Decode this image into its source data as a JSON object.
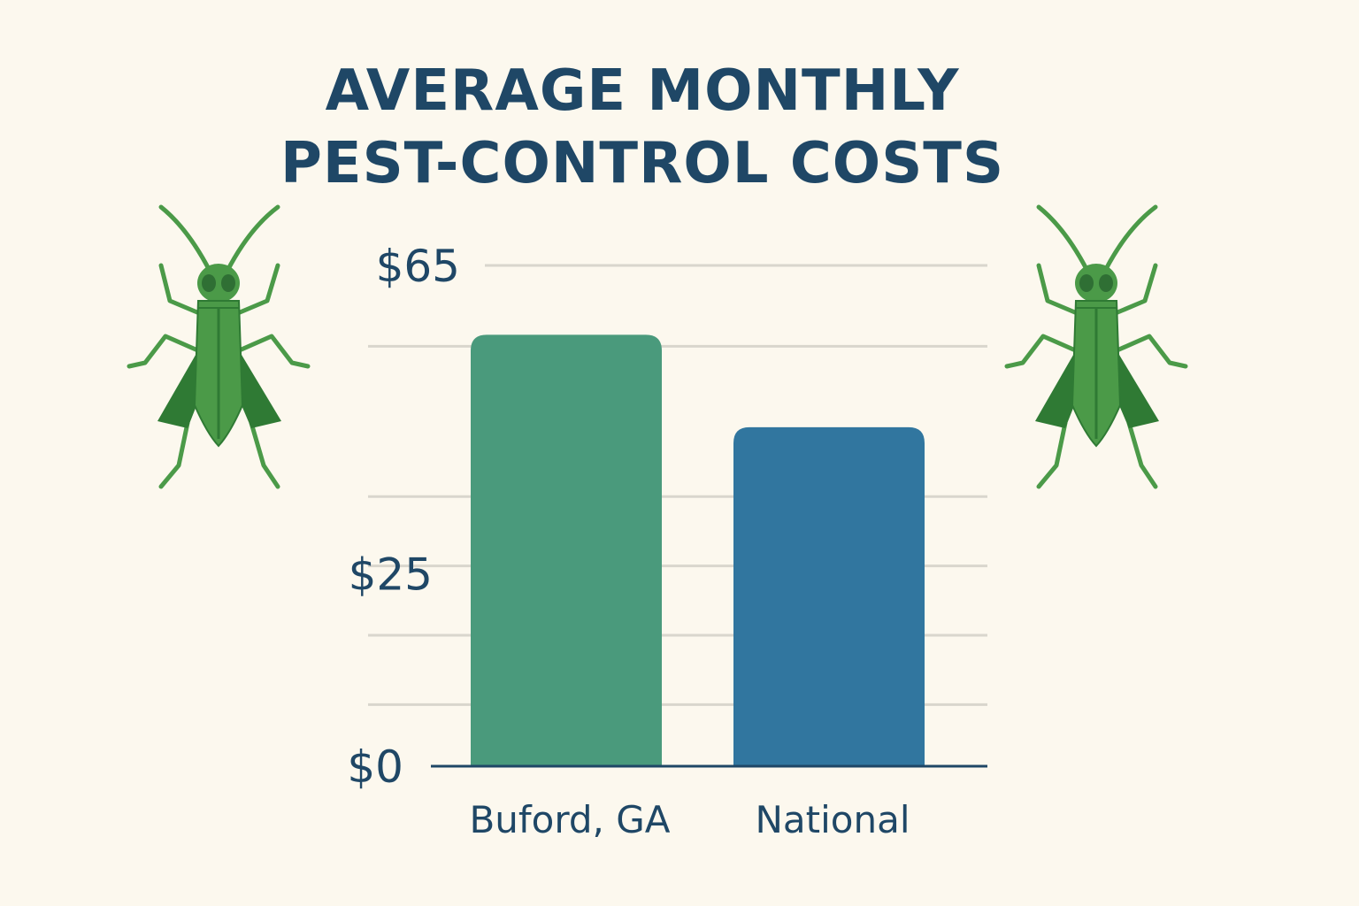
{
  "chart_data": {
    "type": "bar",
    "title_lines": [
      "AVERAGE MONTHLY",
      "PEST-CONTROL COSTS"
    ],
    "categories": [
      "Buford, GA",
      "National"
    ],
    "values": [
      56,
      44
    ],
    "ylim": [
      0,
      65
    ],
    "yticks": [
      {
        "value": 65,
        "label": "$65"
      },
      {
        "value": 25,
        "label": "$25"
      },
      {
        "value": 0,
        "label": "$0"
      }
    ],
    "grid": true,
    "grid_values": [
      65,
      54.5,
      35,
      26,
      17,
      8
    ],
    "bar_colors": [
      "#4a9a7c",
      "#31769f"
    ]
  },
  "colors": {
    "background": "#fcf8ee",
    "text": "#1f4766",
    "gridline": "#d9d6cd",
    "axis": "#1f4766",
    "insect": "#4b9a48",
    "insect_dark": "#2f7a34"
  },
  "decorations": {
    "left_icon": "cricket-icon",
    "right_icon": "cricket-icon"
  }
}
